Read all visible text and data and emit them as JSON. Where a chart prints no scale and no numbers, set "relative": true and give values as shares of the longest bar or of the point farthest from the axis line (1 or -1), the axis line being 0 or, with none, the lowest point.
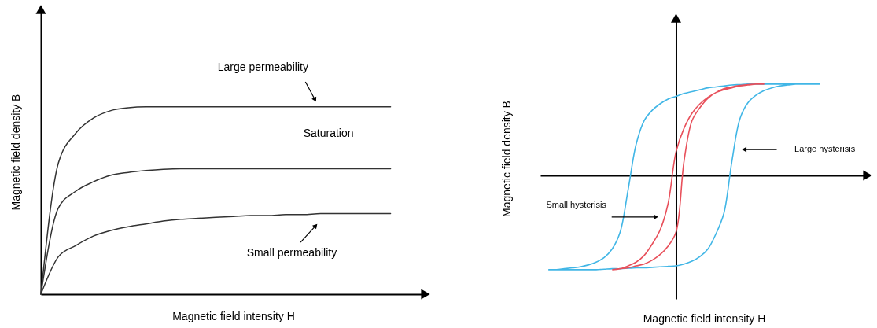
{
  "chart_data": [
    {
      "type": "line",
      "xlabel": "Magnetic field intensity H",
      "ylabel": "Magnetic field density B",
      "relative": true,
      "categories": [
        null,
        null,
        null,
        null,
        null,
        null,
        null,
        null,
        null,
        null,
        null,
        null,
        null,
        null,
        null,
        null,
        null,
        null,
        null,
        null,
        null,
        null,
        null
      ],
      "series": [
        {
          "color": "#333333",
          "values": [
            0,
            0.7,
            0.86,
            0.94,
            0.98,
            0.995,
            1,
            1,
            1,
            1,
            1,
            1,
            1,
            1,
            1,
            1,
            1,
            1,
            1,
            1,
            1,
            null,
            null
          ]
        },
        {
          "color": "#333333",
          "values": [
            0,
            0.46,
            0.55,
            0.6,
            0.635,
            0.65,
            0.66,
            0.667,
            0.67,
            0.67,
            0.67,
            0.67,
            0.67,
            0.67,
            0.67,
            0.67,
            0.67,
            0.67,
            0.67,
            0.67,
            0.67,
            null,
            null
          ]
        },
        {
          "color": "#333333",
          "values": [
            0,
            0.2,
            0.26,
            0.31,
            0.34,
            0.36,
            0.375,
            0.39,
            0.4,
            0.405,
            0.41,
            0.415,
            0.42,
            0.42,
            0.425,
            0.425,
            0.43,
            0.43,
            0.43,
            0.43,
            0.43,
            null,
            null
          ]
        }
      ],
      "annotations": [
        "Large permeability",
        "Saturation",
        "Small permeability"
      ]
    },
    {
      "type": "other",
      "xlabel": "Magnetic field intensity H",
      "ylabel": "Magnetic field density B",
      "annotations": [
        "Large hysterisis",
        "Small hysterisis"
      ]
    }
  ]
}
